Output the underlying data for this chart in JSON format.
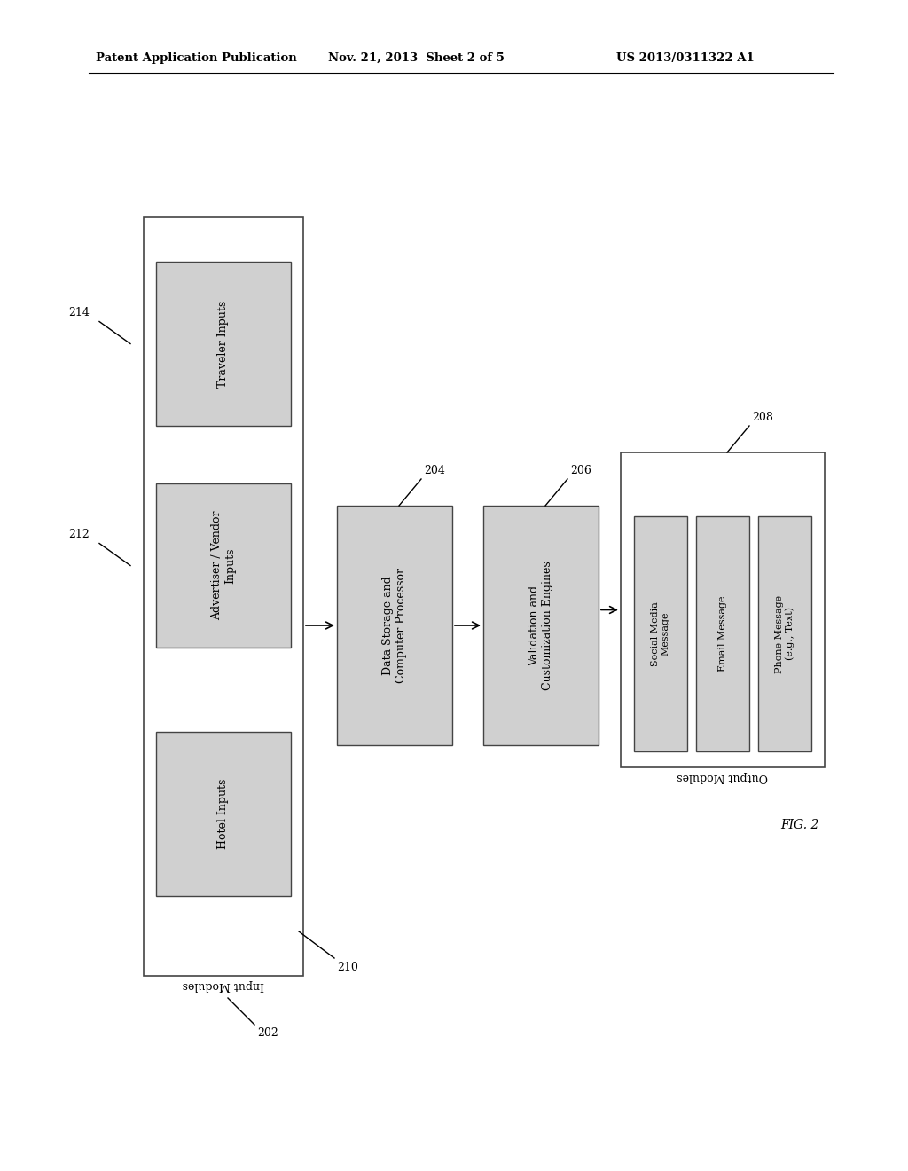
{
  "background_color": "#ffffff",
  "header_left": "Patent Application Publication",
  "header_mid": "Nov. 21, 2013  Sheet 2 of 5",
  "header_right": "US 2013/0311322 A1",
  "fig_label": "FIG. 2",
  "input_modules_label": "Input Modules",
  "output_modules_label": "Output Modules",
  "ref_202": "202",
  "ref_204": "204",
  "ref_206": "206",
  "ref_208": "208",
  "ref_210": "210",
  "ref_212": "212",
  "ref_214": "214",
  "box_fill": "#d0d0d0",
  "box_edge": "#444444",
  "outer_box_fill": "#ffffff",
  "outer_box_edge": "#444444",
  "input_box_labels": [
    "Traveler Inputs",
    "Advertiser / Vendor\nInputs",
    "Hotel Inputs"
  ],
  "proc_box1_label": "Data Storage and\nComputer Processor",
  "proc_box2_label": "Validation and\nCustomization Engines",
  "output_inner_labels": [
    "Social Media\nMessage",
    "Email Message",
    "Phone Message\n(e.g., Text)"
  ]
}
